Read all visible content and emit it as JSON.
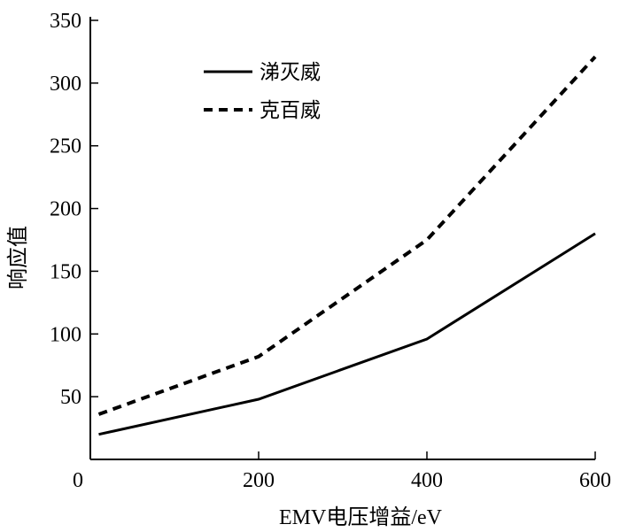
{
  "chart_data": {
    "type": "line",
    "x": [
      10,
      200,
      400,
      600
    ],
    "series": [
      {
        "name": "涕灭威",
        "values": [
          20,
          48,
          96,
          180
        ],
        "style": "solid"
      },
      {
        "name": "克百威",
        "values": [
          36,
          82,
          175,
          321
        ],
        "style": "dashed"
      }
    ],
    "xlabel": "EMV电压增益/eV",
    "ylabel": "响应值",
    "xlim": [
      0,
      600
    ],
    "ylim": [
      0,
      350
    ],
    "xticks": [
      0,
      200,
      400,
      600
    ],
    "yticks": [
      50,
      100,
      150,
      200,
      250,
      300,
      350
    ],
    "grid": false,
    "legend_position": "top-left",
    "colors": {
      "line": "#000000",
      "axis": "#000000",
      "background": "#ffffff"
    }
  }
}
